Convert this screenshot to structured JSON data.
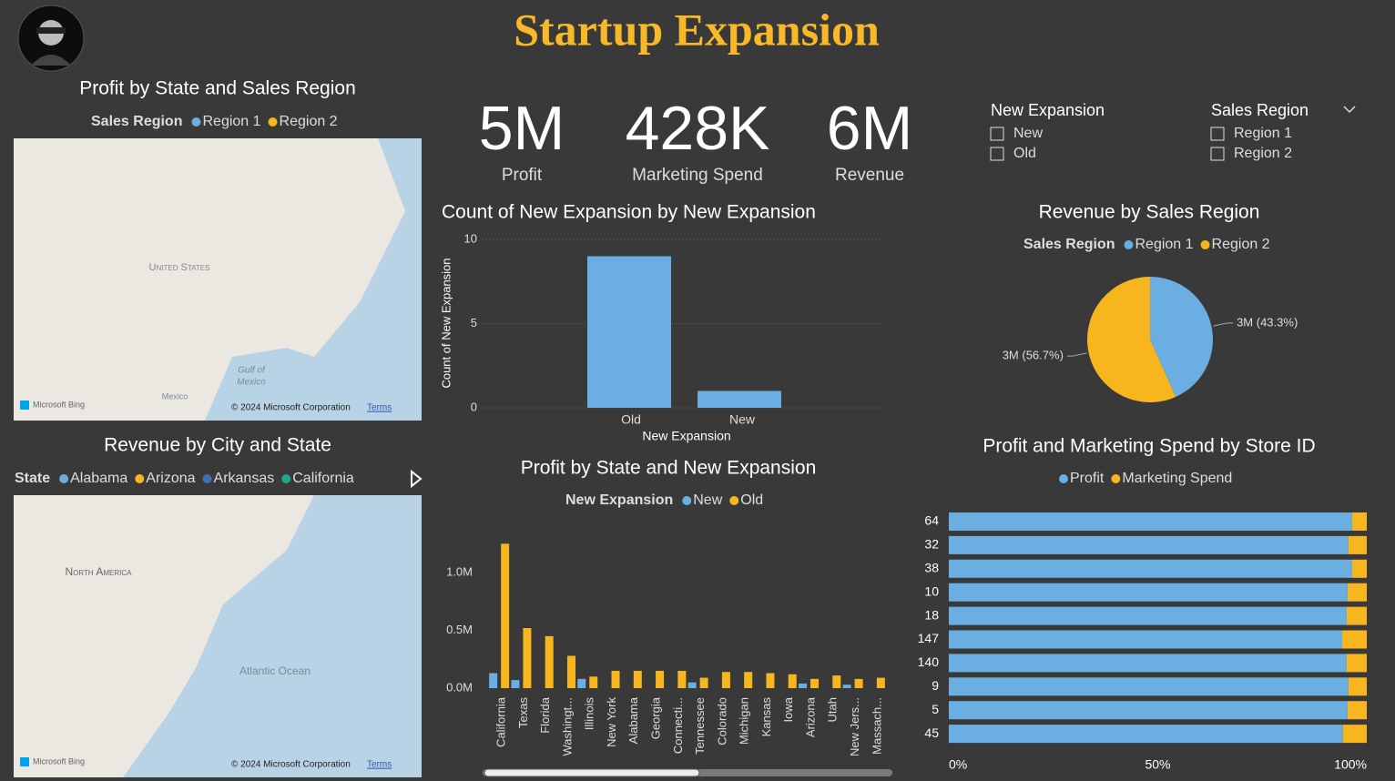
{
  "header": {
    "title": "Startup Expansion"
  },
  "kpis": [
    {
      "value": "5M",
      "label": "Profit"
    },
    {
      "value": "428K",
      "label": "Marketing Spend"
    },
    {
      "value": "6M",
      "label": "Revenue"
    }
  ],
  "slicers": [
    {
      "title": "New Expansion",
      "options": [
        "New",
        "Old"
      ]
    },
    {
      "title": "Sales Region",
      "options": [
        "Region 1",
        "Region 2"
      ]
    }
  ],
  "maps": [
    {
      "title": "Profit by State and Sales Region",
      "legend_title": "Sales Region",
      "legend": [
        {
          "name": "Region 1",
          "color": "#6aaee2"
        },
        {
          "name": "Region 2",
          "color": "#f8b61e"
        }
      ],
      "places": [
        "United States",
        "Gulf of",
        "Mexico",
        "Mexico"
      ],
      "credit": "Microsoft Bing",
      "copyright": "© 2024 Microsoft Corporation",
      "terms": "Terms"
    },
    {
      "title": "Revenue by City and State",
      "legend_title": "State",
      "legend": [
        {
          "name": "Alabama",
          "color": "#6aaee2"
        },
        {
          "name": "Arizona",
          "color": "#f8b61e"
        },
        {
          "name": "Arkansas",
          "color": "#3f6fb5"
        },
        {
          "name": "California",
          "color": "#20a688"
        }
      ],
      "places": [
        "North America",
        "Atlantic Ocean"
      ],
      "credit": "Microsoft Bing",
      "copyright": "© 2024 Microsoft Corporation",
      "terms": "Terms"
    }
  ],
  "chart_data": [
    {
      "type": "bar",
      "title": "Count of New Expansion by New Expansion",
      "categories": [
        "Old",
        "New"
      ],
      "values": [
        9,
        1
      ],
      "color": "#6aaee2",
      "xlabel": "New Expansion",
      "ylabel": "Count of New Expansion",
      "ylim": [
        0,
        10
      ],
      "yticks": [
        0,
        5,
        10
      ],
      "grid": true
    },
    {
      "type": "pie",
      "title": "Revenue by Sales Region",
      "legend_title": "Sales Region",
      "categories": [
        "Region 1",
        "Region 2"
      ],
      "values": [
        43.3,
        56.7
      ],
      "value_labels": [
        "3M (43.3%)",
        "3M (56.7%)"
      ],
      "colors": [
        "#6aaee2",
        "#f8b61e"
      ]
    },
    {
      "type": "bar",
      "title": "Profit by State and New Expansion",
      "legend_title": "New Expansion",
      "categories": [
        "California",
        "Texas",
        "Florida",
        "Washingt...",
        "Illinois",
        "New York",
        "Alabama",
        "Georgia",
        "Connecti...",
        "Tennessee",
        "Colorado",
        "Michigan",
        "Kansas",
        "Iowa",
        "Arizona",
        "Utah",
        "New Jers...",
        "Massach..."
      ],
      "series": [
        {
          "name": "New",
          "color": "#6aaee2",
          "values": [
            130000,
            70000,
            null,
            null,
            80000,
            null,
            null,
            null,
            null,
            50000,
            null,
            null,
            null,
            null,
            40000,
            null,
            30000,
            null
          ]
        },
        {
          "name": "Old",
          "color": "#f8b61e",
          "values": [
            1250000,
            520000,
            450000,
            280000,
            100000,
            150000,
            150000,
            150000,
            150000,
            90000,
            140000,
            140000,
            130000,
            120000,
            80000,
            110000,
            80000,
            90000
          ]
        }
      ],
      "ylim": [
        0,
        1300000
      ],
      "yticks": [
        {
          "value": 0,
          "label": "0.0M"
        },
        {
          "value": 500000,
          "label": "0.5M"
        },
        {
          "value": 1000000,
          "label": "1.0M"
        }
      ]
    },
    {
      "type": "bar",
      "horizontal": true,
      "stacked": true,
      "title": "Profit and Marketing Spend by Store ID",
      "categories": [
        "64",
        "32",
        "38",
        "10",
        "18",
        "147",
        "140",
        "9",
        "5",
        "45"
      ],
      "series": [
        {
          "name": "Profit",
          "color": "#6aaee2",
          "values": [
            96.5,
            95.6,
            96.5,
            95.4,
            95.2,
            94.1,
            95.2,
            95.6,
            95.4,
            94.3
          ]
        },
        {
          "name": "Marketing Spend",
          "color": "#f8b61e",
          "values": [
            3.5,
            4.4,
            3.5,
            4.6,
            4.8,
            5.9,
            4.8,
            4.4,
            4.6,
            5.7
          ]
        }
      ],
      "xlim": [
        0,
        100
      ],
      "xticks": [
        {
          "value": 0,
          "label": "0%"
        },
        {
          "value": 50,
          "label": "50%"
        },
        {
          "value": 100,
          "label": "100%"
        }
      ]
    }
  ]
}
